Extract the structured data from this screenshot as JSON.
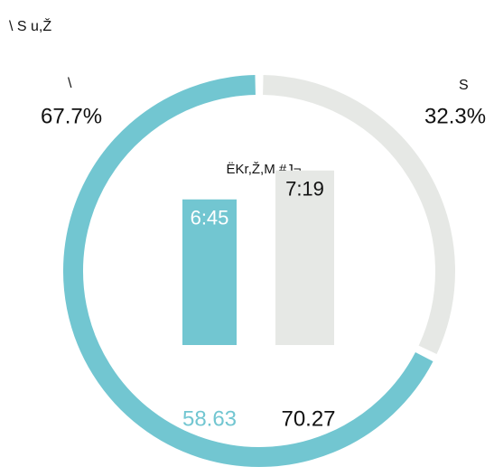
{
  "chart_data": [
    {
      "type": "donut",
      "title": "\\ S u,Ž",
      "categories": [
        "\\",
        "S"
      ],
      "values": [
        67.7,
        32.3
      ],
      "value_labels": [
        "67.7%",
        "32.3%"
      ],
      "colors": [
        "#72c6d1",
        "#e6e8e5"
      ]
    },
    {
      "type": "bar",
      "title": "ËKr,Ž,M #J¬",
      "categories": [
        "6:45",
        "7:19"
      ],
      "values": [
        58.63,
        70.27
      ],
      "ylim": [
        0,
        80
      ],
      "colors": [
        "#72c6d1",
        "#e6e8e5"
      ]
    }
  ]
}
